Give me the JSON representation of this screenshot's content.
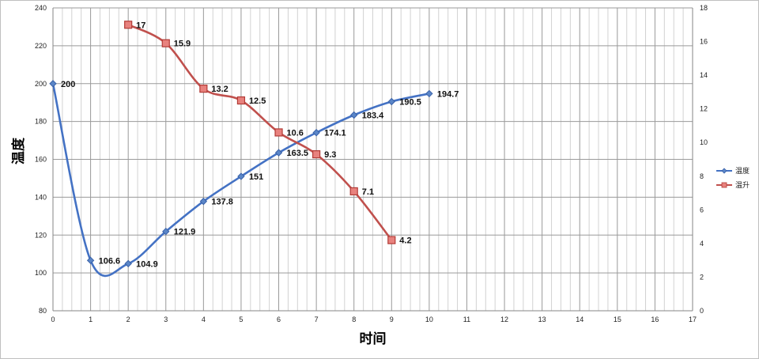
{
  "chart_data": {
    "type": "line",
    "title": "",
    "xlabel": "时间",
    "ylabel": "温度",
    "xlim": [
      0,
      17
    ],
    "ylim": [
      80,
      240
    ],
    "y2lim": [
      0,
      18
    ],
    "xticks": [
      0,
      1,
      2,
      3,
      4,
      5,
      6,
      7,
      8,
      9,
      10,
      11,
      12,
      13,
      14,
      15,
      16,
      17
    ],
    "yticks": [
      80,
      100,
      120,
      140,
      160,
      180,
      200,
      220,
      240
    ],
    "y2ticks": [
      0,
      2,
      4,
      6,
      8,
      10,
      12,
      14,
      16,
      18
    ],
    "grid": true,
    "legend_position": "right",
    "series": [
      {
        "name": "温度",
        "axis": "left",
        "color": "#4472c4",
        "marker": "diamond",
        "x": [
          0,
          1,
          2,
          3,
          4,
          5,
          6,
          7,
          8,
          9,
          10
        ],
        "values": [
          200,
          106.6,
          104.9,
          121.9,
          137.8,
          151,
          163.5,
          174.1,
          183.4,
          190.5,
          194.7
        ],
        "labels": [
          "200",
          "106.6",
          "104.9",
          "121.9",
          "137.8",
          "151",
          "163.5",
          "174.1",
          "183.4",
          "190.5",
          "194.7"
        ]
      },
      {
        "name": "温升",
        "axis": "right",
        "color": "#c0504d",
        "marker": "square",
        "x": [
          2,
          3,
          4,
          5,
          6,
          7,
          8,
          9
        ],
        "values": [
          17,
          15.9,
          13.2,
          12.5,
          10.6,
          9.3,
          7.1,
          4.2
        ],
        "labels": [
          "17",
          "15.9",
          "13.2",
          "12.5",
          "10.6",
          "9.3",
          "7.1",
          "4.2"
        ]
      }
    ]
  }
}
